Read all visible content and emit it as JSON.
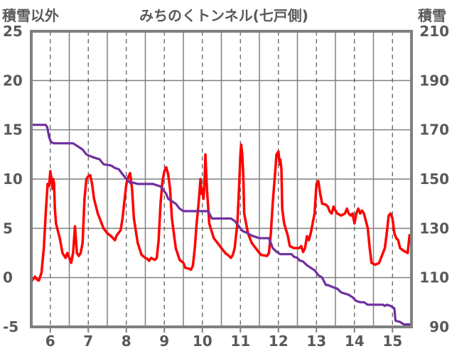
{
  "chart_data": {
    "type": "line",
    "title": "みちのくトンネル(七戸側)",
    "y_left_label": "積雪以外",
    "y_right_label": "積雪",
    "x_range": [
      5.5,
      15.5
    ],
    "x_ticks": [
      6,
      7,
      8,
      9,
      10,
      11,
      12,
      13,
      14,
      15
    ],
    "y_left_range": [
      -5,
      25
    ],
    "y_left_ticks": [
      -5,
      0,
      5,
      10,
      15,
      20,
      25
    ],
    "y_right_range": [
      90,
      210
    ],
    "y_right_ticks": [
      90,
      110,
      130,
      150,
      170,
      190,
      210
    ],
    "grid": "horizontal solid, vertical dashed at day ticks",
    "series": [
      {
        "axis": "left",
        "color": "#ff0000",
        "points": [
          [
            5.5,
            -0.4
          ],
          [
            5.6,
            0.1
          ],
          [
            5.65,
            -0.2
          ],
          [
            5.7,
            -0.3
          ],
          [
            5.77,
            0.5
          ],
          [
            5.83,
            3.0
          ],
          [
            5.88,
            6.5
          ],
          [
            5.93,
            9.5
          ],
          [
            5.97,
            9.3
          ],
          [
            6.0,
            10.8
          ],
          [
            6.03,
            10.0
          ],
          [
            6.06,
            9.0
          ],
          [
            6.08,
            10.0
          ],
          [
            6.1,
            9.5
          ],
          [
            6.12,
            7.0
          ],
          [
            6.15,
            5.5
          ],
          [
            6.25,
            4.0
          ],
          [
            6.32,
            2.5
          ],
          [
            6.4,
            2.0
          ],
          [
            6.45,
            2.5
          ],
          [
            6.5,
            2.0
          ],
          [
            6.55,
            1.5
          ],
          [
            6.6,
            2.5
          ],
          [
            6.65,
            5.2
          ],
          [
            6.7,
            2.5
          ],
          [
            6.75,
            2.2
          ],
          [
            6.8,
            2.5
          ],
          [
            6.85,
            3.5
          ],
          [
            6.9,
            8.0
          ],
          [
            6.95,
            10.0
          ],
          [
            7.0,
            10.3
          ],
          [
            7.05,
            10.4
          ],
          [
            7.1,
            9.5
          ],
          [
            7.15,
            8.0
          ],
          [
            7.25,
            6.5
          ],
          [
            7.4,
            5.0
          ],
          [
            7.5,
            4.5
          ],
          [
            7.6,
            4.2
          ],
          [
            7.65,
            4.0
          ],
          [
            7.7,
            3.8
          ],
          [
            7.75,
            4.3
          ],
          [
            7.85,
            4.8
          ],
          [
            7.9,
            6.0
          ],
          [
            7.95,
            7.8
          ],
          [
            8.0,
            9.5
          ],
          [
            8.05,
            10.2
          ],
          [
            8.1,
            10.6
          ],
          [
            8.15,
            9.0
          ],
          [
            8.2,
            6.0
          ],
          [
            8.3,
            3.5
          ],
          [
            8.4,
            2.3
          ],
          [
            8.5,
            2.0
          ],
          [
            8.55,
            1.9
          ],
          [
            8.6,
            1.7
          ],
          [
            8.65,
            2.0
          ],
          [
            8.75,
            1.8
          ],
          [
            8.8,
            2.0
          ],
          [
            8.85,
            3.8
          ],
          [
            8.9,
            7.5
          ],
          [
            8.95,
            9.8
          ],
          [
            9.0,
            10.8
          ],
          [
            9.05,
            11.2
          ],
          [
            9.1,
            10.5
          ],
          [
            9.15,
            9.0
          ],
          [
            9.2,
            6.0
          ],
          [
            9.3,
            3.0
          ],
          [
            9.4,
            1.8
          ],
          [
            9.5,
            1.5
          ],
          [
            9.55,
            1.0
          ],
          [
            9.65,
            0.9
          ],
          [
            9.7,
            0.8
          ],
          [
            9.75,
            1.2
          ],
          [
            9.8,
            3.0
          ],
          [
            9.85,
            5.5
          ],
          [
            9.9,
            7.5
          ],
          [
            9.92,
            8.5
          ],
          [
            9.95,
            10.0
          ],
          [
            9.98,
            8.5
          ],
          [
            10.0,
            9.0
          ],
          [
            10.03,
            8.0
          ],
          [
            10.06,
            10.0
          ],
          [
            10.08,
            12.5
          ],
          [
            10.12,
            9.0
          ],
          [
            10.18,
            5.5
          ],
          [
            10.3,
            4.0
          ],
          [
            10.4,
            3.5
          ],
          [
            10.5,
            3.0
          ],
          [
            10.6,
            2.5
          ],
          [
            10.7,
            2.2
          ],
          [
            10.75,
            2.0
          ],
          [
            10.8,
            2.3
          ],
          [
            10.85,
            3.0
          ],
          [
            10.92,
            5.5
          ],
          [
            10.97,
            9.5
          ],
          [
            11.0,
            12.5
          ],
          [
            11.02,
            13.5
          ],
          [
            11.05,
            12.5
          ],
          [
            11.08,
            10.0
          ],
          [
            11.1,
            6.5
          ],
          [
            11.2,
            4.5
          ],
          [
            11.3,
            3.5
          ],
          [
            11.4,
            3.0
          ],
          [
            11.5,
            2.5
          ],
          [
            11.55,
            2.3
          ],
          [
            11.7,
            2.2
          ],
          [
            11.75,
            2.5
          ],
          [
            11.8,
            4.5
          ],
          [
            11.85,
            7.5
          ],
          [
            11.9,
            10.0
          ],
          [
            11.95,
            12.5
          ],
          [
            12.0,
            12.8
          ],
          [
            12.03,
            11.5
          ],
          [
            12.05,
            12.0
          ],
          [
            12.08,
            11.0
          ],
          [
            12.1,
            7.0
          ],
          [
            12.15,
            5.5
          ],
          [
            12.25,
            4.2
          ],
          [
            12.3,
            3.2
          ],
          [
            12.4,
            3.0
          ],
          [
            12.55,
            3.0
          ],
          [
            12.6,
            3.2
          ],
          [
            12.65,
            2.6
          ],
          [
            12.7,
            3.0
          ],
          [
            12.75,
            4.2
          ],
          [
            12.8,
            3.8
          ],
          [
            12.85,
            4.5
          ],
          [
            12.9,
            5.5
          ],
          [
            12.95,
            6.5
          ],
          [
            13.0,
            9.5
          ],
          [
            13.05,
            9.8
          ],
          [
            13.1,
            8.5
          ],
          [
            13.15,
            7.5
          ],
          [
            13.25,
            7.4
          ],
          [
            13.3,
            7.2
          ],
          [
            13.35,
            6.7
          ],
          [
            13.4,
            6.5
          ],
          [
            13.45,
            7.2
          ],
          [
            13.5,
            6.8
          ],
          [
            13.55,
            6.5
          ],
          [
            13.65,
            6.3
          ],
          [
            13.75,
            6.5
          ],
          [
            13.8,
            7.0
          ],
          [
            13.85,
            6.5
          ],
          [
            13.9,
            6.3
          ],
          [
            13.95,
            6.5
          ],
          [
            14.0,
            5.5
          ],
          [
            14.05,
            6.5
          ],
          [
            14.1,
            7.0
          ],
          [
            14.15,
            6.5
          ],
          [
            14.2,
            6.8
          ],
          [
            14.25,
            6.5
          ],
          [
            14.35,
            5.0
          ],
          [
            14.4,
            3.0
          ],
          [
            14.45,
            1.5
          ],
          [
            14.55,
            1.3
          ],
          [
            14.65,
            1.5
          ],
          [
            14.75,
            2.5
          ],
          [
            14.8,
            3.0
          ],
          [
            14.85,
            4.5
          ],
          [
            14.9,
            6.3
          ],
          [
            14.95,
            6.5
          ],
          [
            15.0,
            6.0
          ],
          [
            15.05,
            4.5
          ],
          [
            15.1,
            4.0
          ],
          [
            15.15,
            3.8
          ],
          [
            15.2,
            3.0
          ],
          [
            15.3,
            2.7
          ],
          [
            15.4,
            2.5
          ],
          [
            15.45,
            4.3
          ]
        ]
      },
      {
        "axis": "right",
        "color": "#7030a0",
        "points": [
          [
            5.5,
            172
          ],
          [
            5.88,
            172
          ],
          [
            5.92,
            171
          ],
          [
            5.97,
            167
          ],
          [
            6.02,
            165
          ],
          [
            6.1,
            164.5
          ],
          [
            6.3,
            164.5
          ],
          [
            6.6,
            164.5
          ],
          [
            6.75,
            163
          ],
          [
            6.85,
            162
          ],
          [
            6.95,
            160
          ],
          [
            7.1,
            159
          ],
          [
            7.3,
            158
          ],
          [
            7.4,
            156
          ],
          [
            7.6,
            155.5
          ],
          [
            7.7,
            154.5
          ],
          [
            7.8,
            154
          ],
          [
            7.9,
            152
          ],
          [
            8.0,
            150
          ],
          [
            8.1,
            148.5
          ],
          [
            8.2,
            148.5
          ],
          [
            8.3,
            148
          ],
          [
            8.45,
            148
          ],
          [
            8.55,
            148
          ],
          [
            8.7,
            148
          ],
          [
            8.8,
            147.5
          ],
          [
            8.9,
            147
          ],
          [
            8.95,
            146
          ],
          [
            9.05,
            144
          ],
          [
            9.1,
            142
          ],
          [
            9.15,
            141.5
          ],
          [
            9.3,
            140
          ],
          [
            9.4,
            138
          ],
          [
            9.5,
            137
          ],
          [
            9.6,
            137
          ],
          [
            9.8,
            137
          ],
          [
            10.0,
            137
          ],
          [
            10.15,
            137
          ],
          [
            10.25,
            134
          ],
          [
            10.4,
            134
          ],
          [
            10.6,
            134
          ],
          [
            10.75,
            134
          ],
          [
            10.85,
            133
          ],
          [
            10.95,
            131
          ],
          [
            11.05,
            129
          ],
          [
            11.2,
            128
          ],
          [
            11.3,
            127
          ],
          [
            11.5,
            126
          ],
          [
            11.6,
            126
          ],
          [
            11.75,
            126
          ],
          [
            11.8,
            124
          ],
          [
            11.85,
            122
          ],
          [
            11.95,
            120.5
          ],
          [
            12.05,
            119.5
          ],
          [
            12.2,
            119.5
          ],
          [
            12.35,
            119.5
          ],
          [
            12.4,
            118.5
          ],
          [
            12.5,
            118
          ],
          [
            12.55,
            117
          ],
          [
            12.65,
            116.5
          ],
          [
            12.75,
            115
          ],
          [
            12.85,
            114
          ],
          [
            12.95,
            113
          ],
          [
            13.0,
            112
          ],
          [
            13.05,
            111
          ],
          [
            13.15,
            110
          ],
          [
            13.2,
            108.5
          ],
          [
            13.25,
            107
          ],
          [
            13.3,
            107
          ],
          [
            13.45,
            106
          ],
          [
            13.55,
            105.5
          ],
          [
            13.65,
            104
          ],
          [
            13.75,
            103.5
          ],
          [
            13.85,
            103
          ],
          [
            13.95,
            102
          ],
          [
            14.05,
            100.5
          ],
          [
            14.15,
            100
          ],
          [
            14.25,
            100
          ],
          [
            14.35,
            99
          ],
          [
            14.45,
            99
          ],
          [
            14.55,
            99
          ],
          [
            14.65,
            99
          ],
          [
            14.75,
            99
          ],
          [
            14.8,
            98.5
          ],
          [
            14.85,
            99
          ],
          [
            14.95,
            98.5
          ],
          [
            15.05,
            97.5
          ],
          [
            15.08,
            92.5
          ],
          [
            15.2,
            92
          ],
          [
            15.3,
            91
          ],
          [
            15.45,
            91
          ]
        ]
      }
    ]
  }
}
